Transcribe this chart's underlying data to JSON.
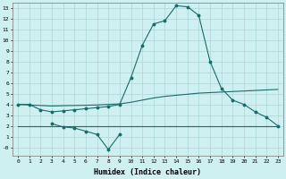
{
  "xlabel": "Humidex (Indice chaleur)",
  "background_color": "#cff0f0",
  "grid_color": "#aad8d8",
  "line_color": "#1a6b6b",
  "x": [
    0,
    1,
    2,
    3,
    4,
    5,
    6,
    7,
    8,
    9,
    10,
    11,
    12,
    13,
    14,
    15,
    16,
    17,
    18,
    19,
    20,
    21,
    22,
    23
  ],
  "line1": [
    4.0,
    4.0,
    3.5,
    3.3,
    3.4,
    3.5,
    3.6,
    3.7,
    3.8,
    4.0,
    6.5,
    9.5,
    11.5,
    11.8,
    13.2,
    13.1,
    12.3,
    8.0,
    5.5,
    4.4,
    4.0,
    3.3,
    2.8,
    2.0
  ],
  "line2": [
    4.0,
    3.95,
    3.9,
    3.85,
    3.88,
    3.9,
    3.92,
    3.95,
    4.0,
    4.05,
    4.2,
    4.4,
    4.6,
    4.75,
    4.85,
    4.95,
    5.05,
    5.1,
    5.15,
    5.2,
    5.25,
    5.3,
    5.35,
    5.4
  ],
  "line3": [
    2.0,
    2.0,
    2.0,
    2.0,
    2.0,
    2.0,
    2.0,
    2.0,
    2.0,
    2.0,
    2.0,
    2.0,
    2.0,
    2.0,
    2.0,
    2.0,
    2.0,
    2.0,
    2.0,
    2.0,
    2.0,
    2.0,
    2.0,
    2.0
  ],
  "line_dip_x": [
    3,
    4,
    5,
    6,
    7,
    8,
    9
  ],
  "line_dip_y": [
    2.2,
    1.9,
    1.8,
    1.5,
    1.2,
    -0.2,
    1.2
  ],
  "ylim": [
    -0.8,
    13.5
  ],
  "yticks": [
    0,
    1,
    2,
    3,
    4,
    5,
    6,
    7,
    8,
    9,
    10,
    11,
    12,
    13
  ],
  "ytick_labels": [
    "-0",
    "1",
    "2",
    "3",
    "4",
    "5",
    "6",
    "7",
    "8",
    "9",
    "10",
    "11",
    "12",
    "13"
  ],
  "xticks": [
    0,
    1,
    2,
    3,
    4,
    5,
    6,
    7,
    8,
    9,
    10,
    11,
    12,
    13,
    14,
    15,
    16,
    17,
    18,
    19,
    20,
    21,
    22,
    23
  ]
}
